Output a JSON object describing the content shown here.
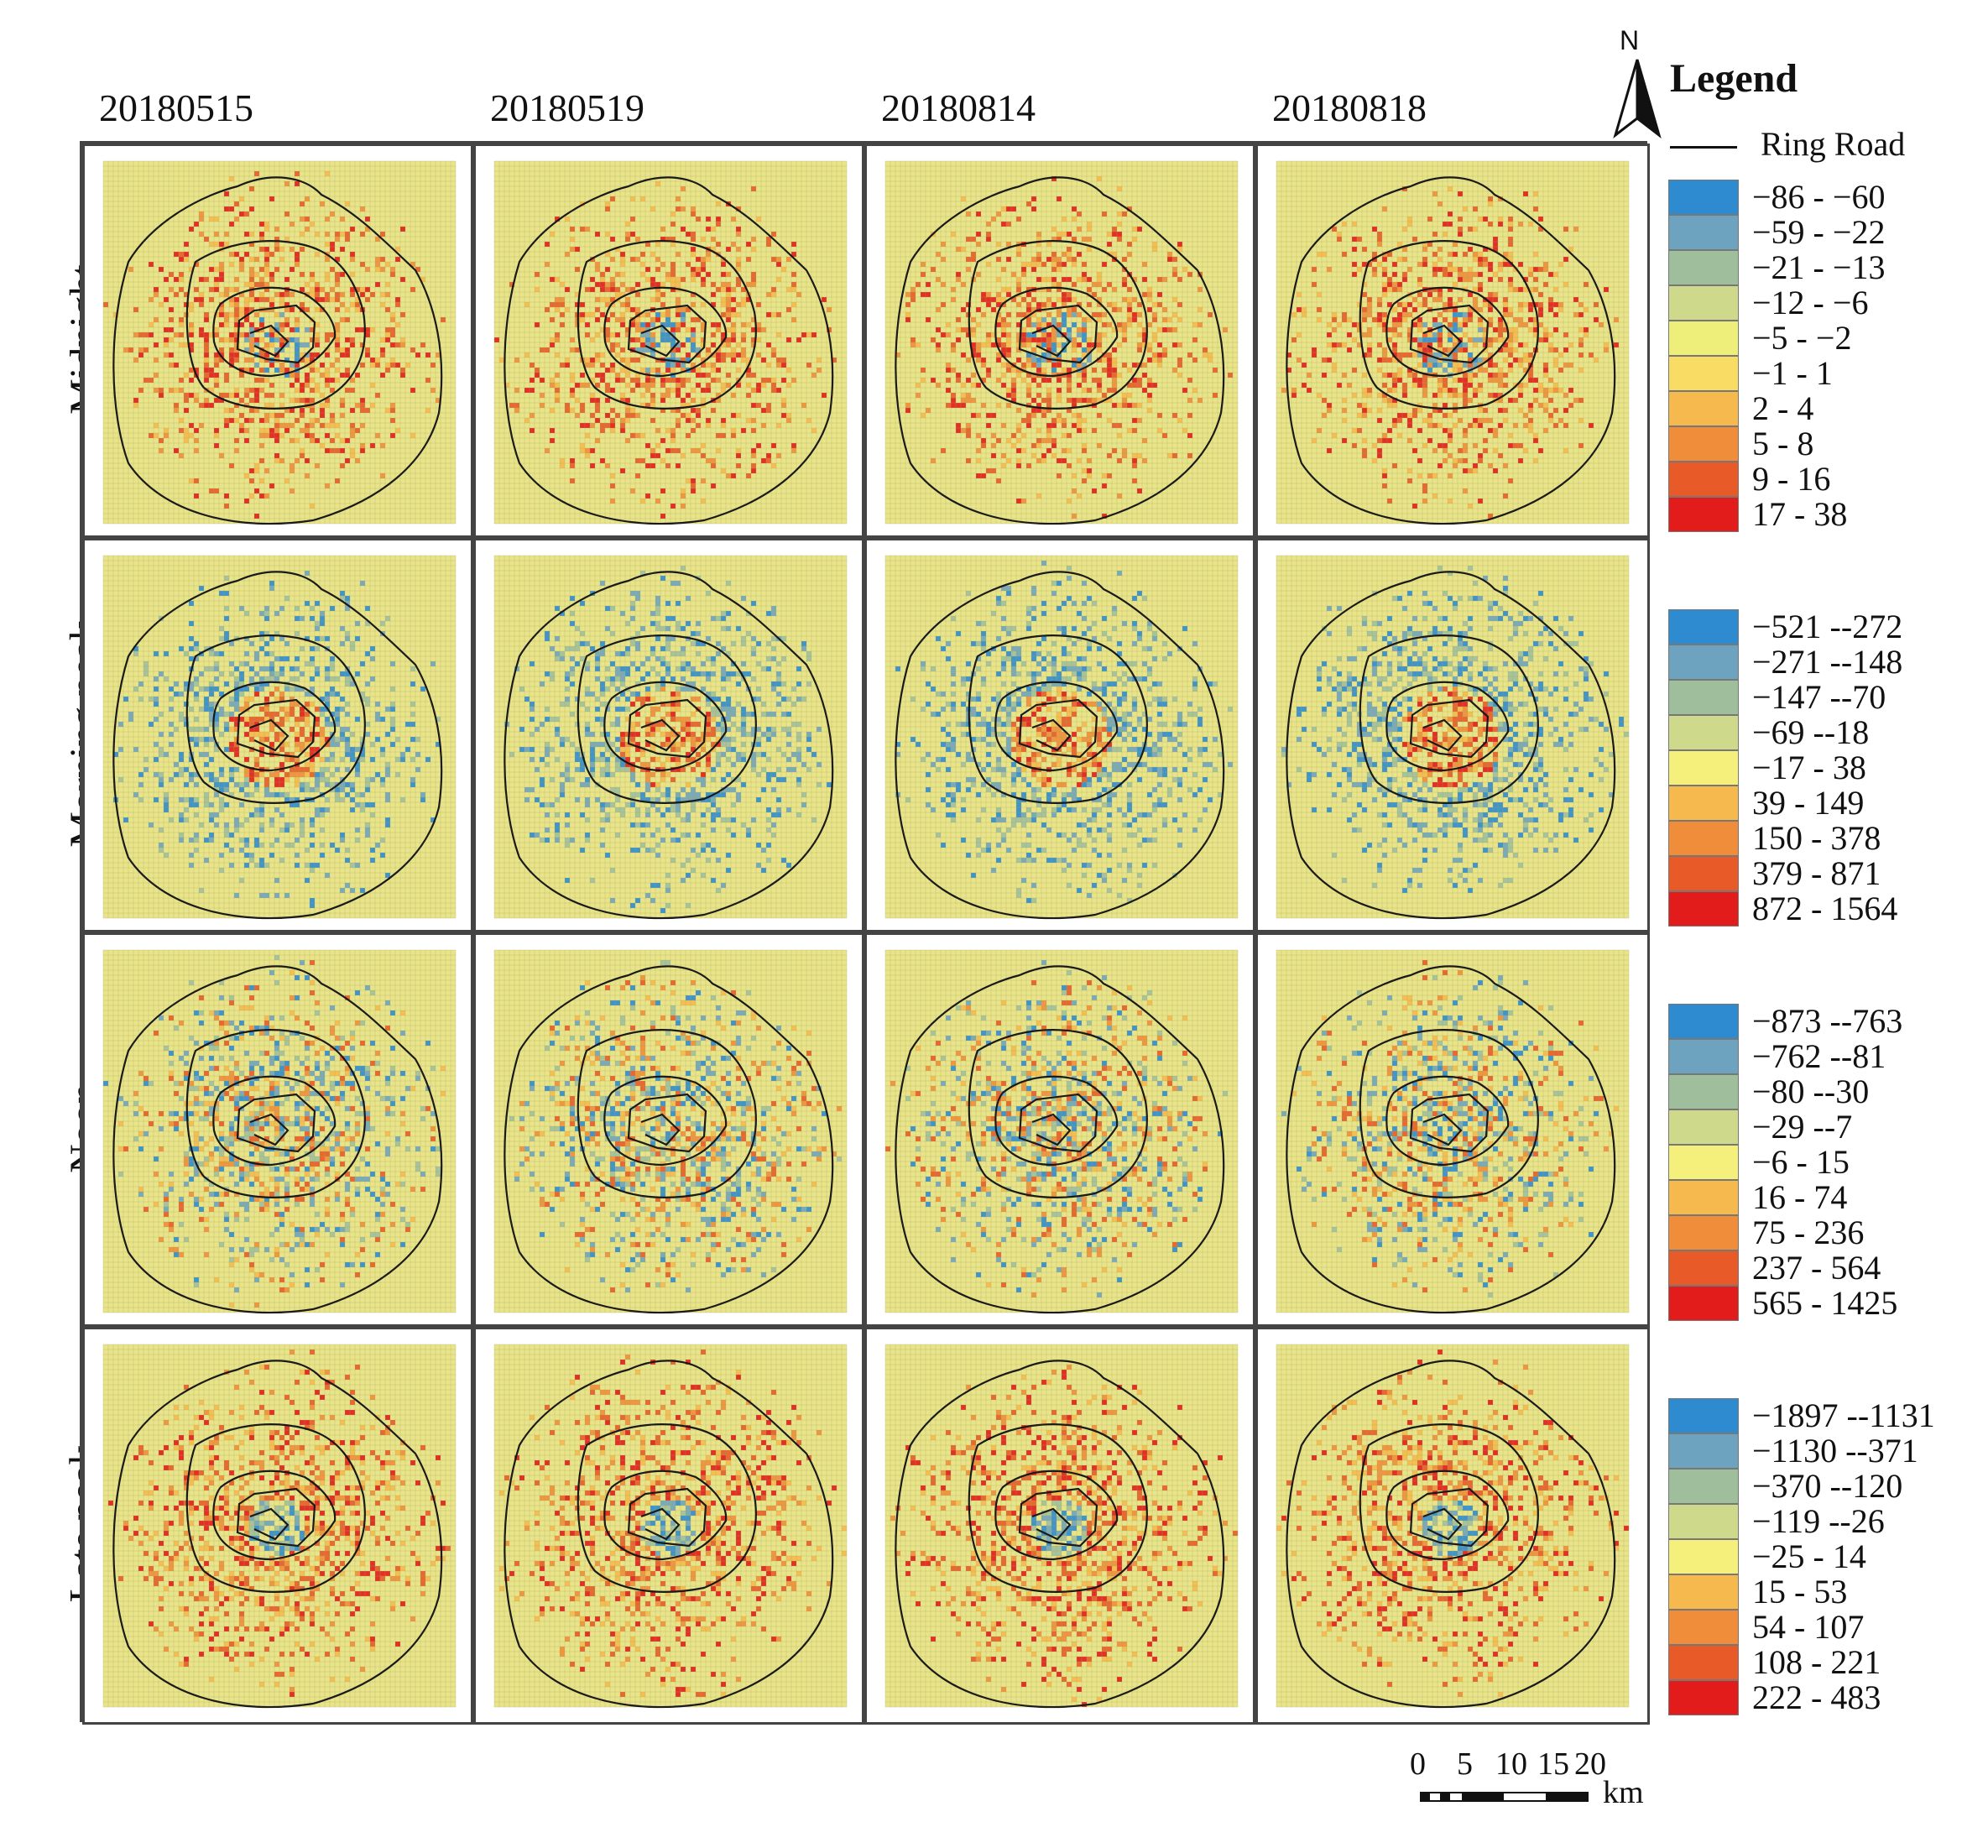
{
  "columns": [
    "20180515",
    "20180519",
    "20180814",
    "20180818"
  ],
  "rows": [
    "Midnight",
    "Morning peak",
    "Noon",
    "Late peak"
  ],
  "legend": {
    "title": "Legend",
    "north": "N",
    "ring_road_label": "Ring Road",
    "groups": [
      {
        "row": "Midnight",
        "items": [
          "−86  -  −60",
          "−59  -  −22",
          "−21  -  −13",
          "−12  -  −6",
          "−5  -  −2",
          "−1  -  1",
          "2  -  4",
          "5  -  8",
          "9  -  16",
          "17  -  38"
        ]
      },
      {
        "row": "Morning peak",
        "items": [
          "−521 --272",
          "−271 --148",
          "−147 --70",
          "−69 --18",
          "−17 - 38",
          "39 - 149",
          "150 - 378",
          "379 - 871",
          "872 - 1564"
        ]
      },
      {
        "row": "Noon",
        "items": [
          "−873 --763",
          "−762 --81",
          "−80 --30",
          "−29 --7",
          "−6 - 15",
          "16 - 74",
          "75 - 236",
          "237 - 564",
          "565 - 1425"
        ]
      },
      {
        "row": "Late peak",
        "items": [
          "−1897 --1131",
          "−1130 --371",
          "−370 --120",
          "−119 --26",
          "−25 - 14",
          "15 - 53",
          "54 - 107",
          "108 - 221",
          "222 - 483"
        ]
      }
    ],
    "colors10": [
      "#2e8bcf",
      "#6ea3bf",
      "#9fbf9c",
      "#cfd98c",
      "#eeee7a",
      "#f9dc63",
      "#f6b94d",
      "#ef8d3a",
      "#e85a28",
      "#e21b1b"
    ],
    "colors9": [
      "#2e8bcf",
      "#6ea3bf",
      "#9fbf9c",
      "#cfd98c",
      "#f5f07c",
      "#f6b94d",
      "#ef8d3a",
      "#e85a28",
      "#e21b1b"
    ]
  },
  "scale_bar": {
    "ticks": [
      "0",
      "5",
      "10",
      "15",
      "20"
    ],
    "unit": "km"
  },
  "colors": {
    "map_background": "#e9e48a",
    "grid_line": "#a6a95a",
    "ring_road": "#1a1a1a"
  }
}
